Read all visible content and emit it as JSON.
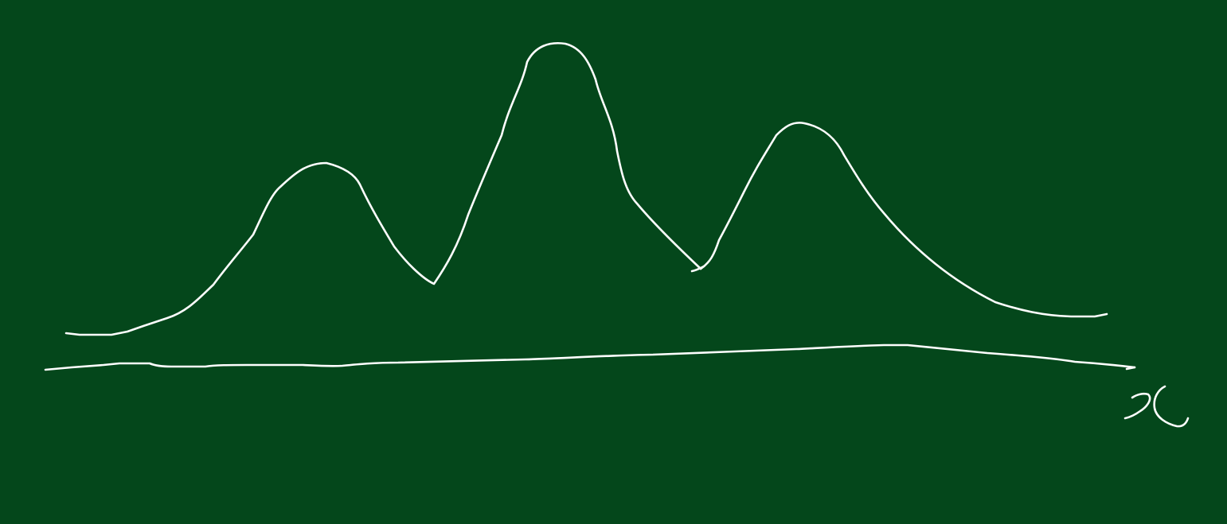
{
  "canvas": {
    "background_color": "#04471b",
    "ink_color": "#ffffff"
  },
  "sketch": {
    "description_elements": [
      "three-peaked-curve",
      "horizontal-axis",
      "axis-label"
    ],
    "axis_label_text": "x",
    "peaks": [
      "left-peak",
      "center-peak",
      "right-peak"
    ]
  }
}
